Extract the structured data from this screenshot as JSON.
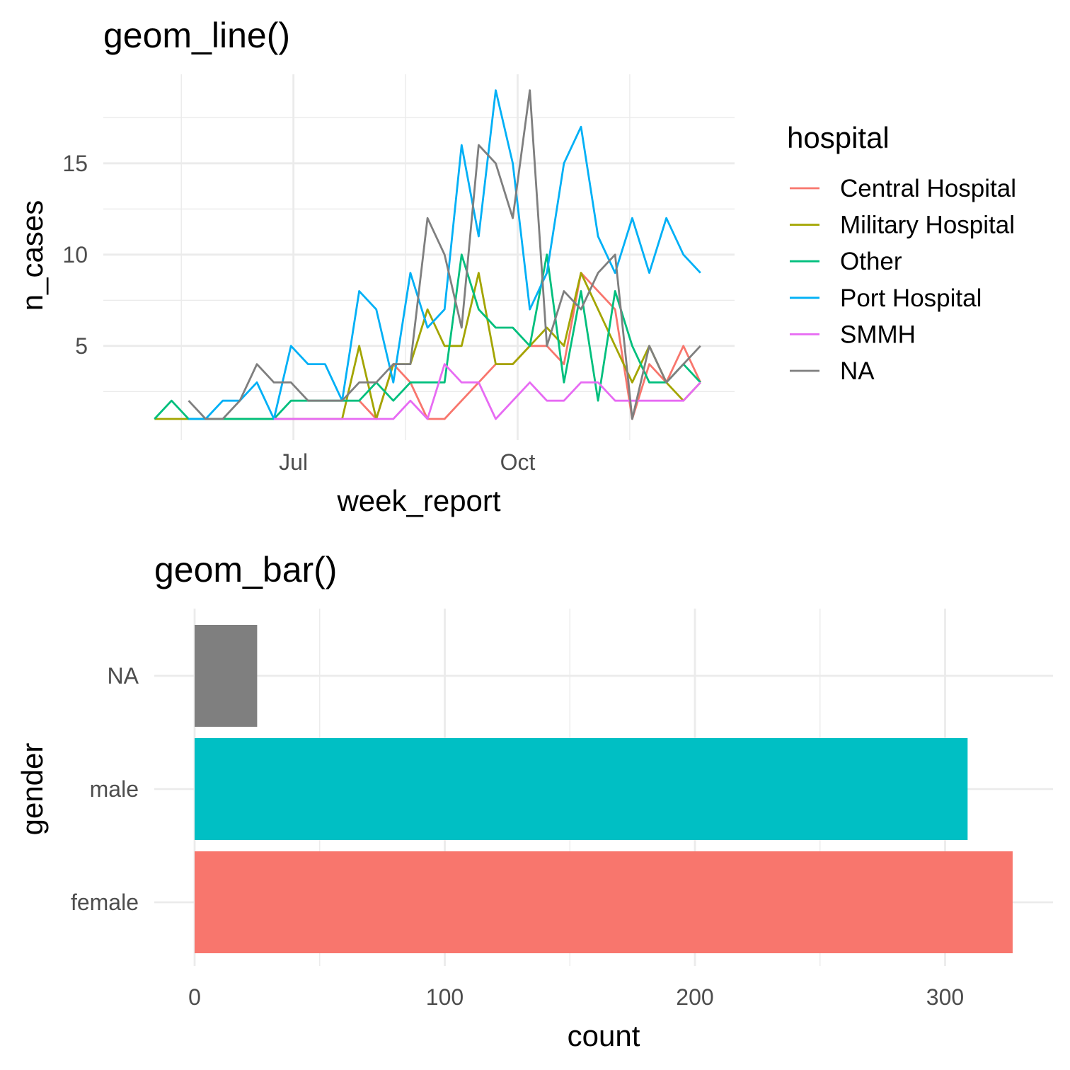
{
  "chart_data": [
    {
      "type": "line",
      "title": "geom_line()",
      "xlabel": "week_report",
      "ylabel": "n_cases",
      "x_ticks": [
        "Jul",
        "Oct"
      ],
      "y_ticks": [
        5,
        10,
        15
      ],
      "ylim": [
        0,
        19
      ],
      "xlim": [
        "2014-04-14",
        "2014-12-29"
      ],
      "grid": true,
      "legend": {
        "title": "hospital",
        "position": "right"
      },
      "series": [
        {
          "name": "Central Hospital",
          "color": "#F8766D",
          "x": [
            "2014-07-28",
            "2014-08-04",
            "2014-08-11",
            "2014-08-18",
            "2014-08-25",
            "2014-09-01",
            "2014-09-08",
            "2014-09-15",
            "2014-09-22",
            "2014-09-29",
            "2014-10-06",
            "2014-10-13",
            "2014-10-20",
            "2014-10-27",
            "2014-11-03",
            "2014-11-10",
            "2014-11-17",
            "2014-11-24",
            "2014-12-01",
            "2014-12-08",
            "2014-12-15"
          ],
          "y": [
            2,
            1,
            4,
            3,
            1,
            1,
            2,
            3,
            4,
            4,
            5,
            5,
            4,
            9,
            8,
            7,
            1,
            4,
            3,
            5,
            3
          ]
        },
        {
          "name": "Military Hospital",
          "color": "#A3A500",
          "x": [
            "2014-05-05",
            "2014-05-12",
            "2014-05-19",
            "2014-05-26",
            "2014-06-02",
            "2014-06-09",
            "2014-06-16",
            "2014-06-23",
            "2014-06-30",
            "2014-07-07",
            "2014-07-14",
            "2014-07-21",
            "2014-07-28",
            "2014-08-04",
            "2014-08-11",
            "2014-08-18",
            "2014-08-25",
            "2014-09-01",
            "2014-09-08",
            "2014-09-15",
            "2014-09-22",
            "2014-09-29",
            "2014-10-06",
            "2014-10-13",
            "2014-10-20",
            "2014-10-27",
            "2014-11-03",
            "2014-11-10",
            "2014-11-17",
            "2014-11-24",
            "2014-12-01",
            "2014-12-08",
            "2014-12-15"
          ],
          "y": [
            1,
            1,
            1,
            1,
            1,
            1,
            1,
            1,
            1,
            1,
            1,
            1,
            5,
            1,
            4,
            4,
            7,
            5,
            5,
            9,
            4,
            4,
            5,
            6,
            5,
            9,
            7,
            5,
            3,
            5,
            3,
            2,
            3
          ]
        },
        {
          "name": "Other",
          "color": "#00BF7D",
          "x": [
            "2014-05-05",
            "2014-05-12",
            "2014-05-19",
            "2014-05-26",
            "2014-06-02",
            "2014-06-09",
            "2014-06-16",
            "2014-06-23",
            "2014-06-30",
            "2014-07-07",
            "2014-07-14",
            "2014-07-21",
            "2014-07-28",
            "2014-08-04",
            "2014-08-11",
            "2014-08-18",
            "2014-08-25",
            "2014-09-01",
            "2014-09-08",
            "2014-09-15",
            "2014-09-22",
            "2014-09-29",
            "2014-10-06",
            "2014-10-13",
            "2014-10-20",
            "2014-10-27",
            "2014-11-03",
            "2014-11-10",
            "2014-11-17",
            "2014-11-24",
            "2014-12-01",
            "2014-12-08",
            "2014-12-15"
          ],
          "y": [
            1,
            2,
            1,
            1,
            1,
            1,
            1,
            1,
            2,
            2,
            2,
            2,
            2,
            3,
            2,
            3,
            3,
            3,
            10,
            7,
            6,
            6,
            5,
            10,
            3,
            8,
            2,
            8,
            5,
            3,
            3,
            4,
            3
          ]
        },
        {
          "name": "Port Hospital",
          "color": "#00B0F6",
          "x": [
            "2014-05-19",
            "2014-05-26",
            "2014-06-02",
            "2014-06-09",
            "2014-06-16",
            "2014-06-23",
            "2014-06-30",
            "2014-07-07",
            "2014-07-14",
            "2014-07-21",
            "2014-07-28",
            "2014-08-04",
            "2014-08-11",
            "2014-08-18",
            "2014-08-25",
            "2014-09-01",
            "2014-09-08",
            "2014-09-15",
            "2014-09-22",
            "2014-09-29",
            "2014-10-06",
            "2014-10-13",
            "2014-10-20",
            "2014-10-27",
            "2014-11-03",
            "2014-11-10",
            "2014-11-17",
            "2014-11-24",
            "2014-12-01",
            "2014-12-08",
            "2014-12-15"
          ],
          "y": [
            1,
            1,
            2,
            2,
            3,
            1,
            5,
            4,
            4,
            2,
            8,
            7,
            3,
            9,
            6,
            7,
            16,
            11,
            19,
            15,
            7,
            9,
            15,
            17,
            11,
            9,
            12,
            9,
            12,
            10,
            9
          ]
        },
        {
          "name": "SMMH",
          "color": "#E76BF3",
          "x": [
            "2014-06-23",
            "2014-06-30",
            "2014-07-07",
            "2014-07-14",
            "2014-07-21",
            "2014-07-28",
            "2014-08-04",
            "2014-08-11",
            "2014-08-18",
            "2014-08-25",
            "2014-09-01",
            "2014-09-08",
            "2014-09-15",
            "2014-09-22",
            "2014-09-29",
            "2014-10-06",
            "2014-10-13",
            "2014-10-20",
            "2014-10-27",
            "2014-11-03",
            "2014-11-10",
            "2014-11-17",
            "2014-11-24",
            "2014-12-01",
            "2014-12-08",
            "2014-12-15"
          ],
          "y": [
            1,
            1,
            1,
            1,
            1,
            1,
            1,
            1,
            2,
            1,
            4,
            3,
            3,
            1,
            2,
            3,
            2,
            2,
            3,
            3,
            2,
            2,
            2,
            2,
            2,
            3
          ]
        },
        {
          "name": "NA",
          "color": "#7F7F7F",
          "x": [
            "2014-05-19",
            "2014-05-26",
            "2014-06-02",
            "2014-06-09",
            "2014-06-16",
            "2014-06-23",
            "2014-06-30",
            "2014-07-07",
            "2014-07-14",
            "2014-07-21",
            "2014-07-28",
            "2014-08-04",
            "2014-08-11",
            "2014-08-18",
            "2014-08-25",
            "2014-09-01",
            "2014-09-08",
            "2014-09-15",
            "2014-09-22",
            "2014-09-29",
            "2014-10-06",
            "2014-10-13",
            "2014-10-20",
            "2014-10-27",
            "2014-11-03",
            "2014-11-10",
            "2014-11-17",
            "2014-11-24",
            "2014-12-01",
            "2014-12-08",
            "2014-12-15"
          ],
          "y": [
            2,
            1,
            1,
            2,
            4,
            3,
            3,
            2,
            2,
            2,
            3,
            3,
            4,
            4,
            12,
            10,
            6,
            16,
            15,
            12,
            19,
            5,
            8,
            7,
            9,
            10,
            1,
            5,
            3,
            4,
            5
          ]
        }
      ]
    },
    {
      "type": "bar",
      "orientation": "horizontal",
      "title": "geom_bar()",
      "xlabel": "count",
      "ylabel": "gender",
      "categories": [
        "female",
        "male",
        "NA"
      ],
      "values": [
        327,
        309,
        25
      ],
      "colors": [
        "#F8766D",
        "#00BFC4",
        "#7F7F7F"
      ],
      "x_ticks": [
        0,
        100,
        200,
        300
      ],
      "xlim": [
        -16,
        342
      ],
      "grid": true
    }
  ]
}
